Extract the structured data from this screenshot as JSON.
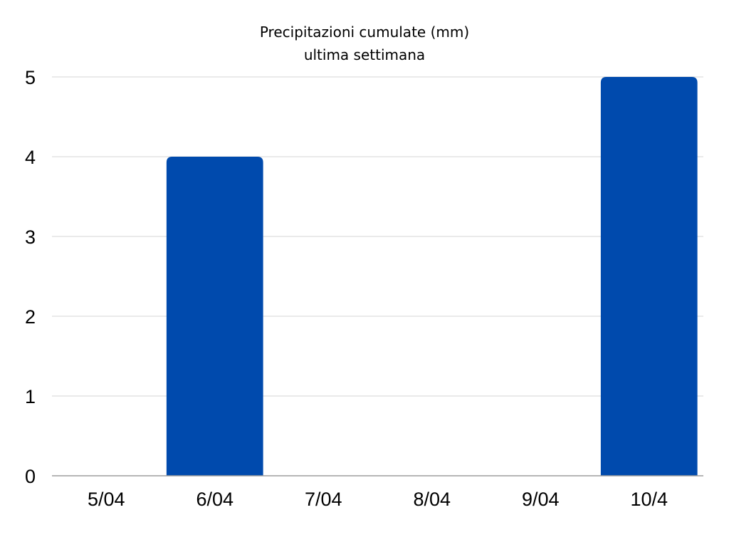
{
  "chart_data": {
    "type": "bar",
    "title": "Precipitazioni cumulate (mm)",
    "subtitle": "ultima settimana",
    "categories": [
      "5/04",
      "6/04",
      "7/04",
      "8/04",
      "9/04",
      "10/4"
    ],
    "values": [
      0,
      4,
      0,
      0,
      0,
      5
    ],
    "ylim": [
      0,
      5
    ],
    "yticks": [
      "0",
      "1",
      "2",
      "3",
      "4",
      "5"
    ],
    "grid": true,
    "bar_color": "#004aad"
  }
}
